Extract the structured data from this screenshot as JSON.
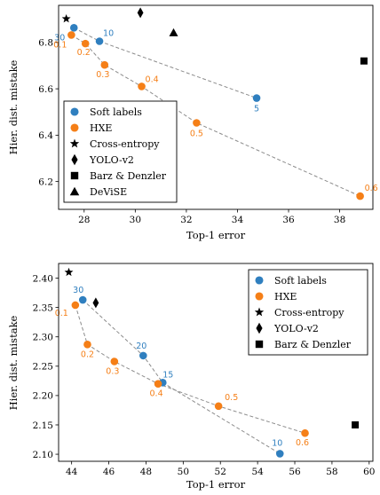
{
  "colors": {
    "soft": "#2f7fbf",
    "hxe": "#f57f17",
    "dash": "#8c8c8c",
    "black": "#000000"
  },
  "chart_data": [
    {
      "type": "scatter",
      "xlabel": "Top-1 error",
      "ylabel": "Hier. dist. mistake",
      "xlim": [
        27,
        39.3
      ],
      "ylim": [
        6.08,
        6.96
      ],
      "xticks": [
        28,
        30,
        32,
        34,
        36,
        38
      ],
      "yticks": [
        6.2,
        6.4,
        6.6,
        6.8
      ],
      "legend_position": "bottom-left",
      "series": [
        {
          "name": "Soft labels",
          "marker": "circle",
          "color_key": "soft",
          "connected": true,
          "points": [
            {
              "x": 27.6,
              "y": 6.863,
              "label": "30"
            },
            {
              "x": 28.6,
              "y": 6.805,
              "label": "10"
            },
            {
              "x": 34.75,
              "y": 6.56,
              "label": "5"
            }
          ]
        },
        {
          "name": "HXE",
          "marker": "circle",
          "color_key": "hxe",
          "connected": true,
          "points": [
            {
              "x": 27.5,
              "y": 6.832,
              "label": "0.1"
            },
            {
              "x": 28.05,
              "y": 6.795,
              "label": "0.2"
            },
            {
              "x": 28.8,
              "y": 6.703,
              "label": "0.3"
            },
            {
              "x": 30.25,
              "y": 6.61,
              "label": "0.4"
            },
            {
              "x": 32.4,
              "y": 6.453,
              "label": "0.5"
            },
            {
              "x": 38.8,
              "y": 6.137,
              "label": "0.6"
            }
          ]
        },
        {
          "name": "Cross-entropy",
          "marker": "star",
          "color_key": "black",
          "points": [
            {
              "x": 27.3,
              "y": 6.902
            }
          ]
        },
        {
          "name": "YOLO-v2",
          "marker": "diamond",
          "color_key": "black",
          "points": [
            {
              "x": 30.2,
              "y": 6.928
            }
          ]
        },
        {
          "name": "Barz & Denzler",
          "marker": "square",
          "color_key": "black",
          "points": [
            {
              "x": 38.95,
              "y": 6.72
            }
          ]
        },
        {
          "name": "DeViSE",
          "marker": "triangle",
          "color_key": "black",
          "points": [
            {
              "x": 31.5,
              "y": 6.842
            }
          ]
        }
      ]
    },
    {
      "type": "scatter",
      "xlabel": "Top-1 error",
      "ylabel": "Hier. dist. mistake",
      "xlim": [
        43.3,
        60.2
      ],
      "ylim": [
        2.088,
        2.425
      ],
      "xticks": [
        44,
        46,
        48,
        50,
        52,
        54,
        56,
        58,
        60
      ],
      "yticks": [
        2.1,
        2.15,
        2.2,
        2.25,
        2.3,
        2.35,
        2.4
      ],
      "legend_position": "top-right",
      "series": [
        {
          "name": "Soft labels",
          "marker": "circle",
          "color_key": "soft",
          "connected": true,
          "points": [
            {
              "x": 44.6,
              "y": 2.363,
              "label": "30"
            },
            {
              "x": 47.85,
              "y": 2.268,
              "label": "20"
            },
            {
              "x": 48.9,
              "y": 2.222,
              "label": "15"
            },
            {
              "x": 55.2,
              "y": 2.101,
              "label": "10"
            }
          ]
        },
        {
          "name": "HXE",
          "marker": "circle",
          "color_key": "hxe",
          "connected": true,
          "points": [
            {
              "x": 44.2,
              "y": 2.354,
              "label": "0.1"
            },
            {
              "x": 44.85,
              "y": 2.287,
              "label": "0.2"
            },
            {
              "x": 46.3,
              "y": 2.258,
              "label": "0.3"
            },
            {
              "x": 48.65,
              "y": 2.22,
              "label": "0.4"
            },
            {
              "x": 51.9,
              "y": 2.182,
              "label": "0.5"
            },
            {
              "x": 56.55,
              "y": 2.136,
              "label": "0.6"
            }
          ]
        },
        {
          "name": "Cross-entropy",
          "marker": "star",
          "color_key": "black",
          "points": [
            {
              "x": 43.85,
              "y": 2.41
            }
          ]
        },
        {
          "name": "YOLO-v2",
          "marker": "diamond",
          "color_key": "black",
          "points": [
            {
              "x": 45.3,
              "y": 2.358
            }
          ]
        },
        {
          "name": "Barz & Denzler",
          "marker": "square",
          "color_key": "black",
          "points": [
            {
              "x": 59.25,
              "y": 2.15
            }
          ]
        }
      ]
    }
  ]
}
